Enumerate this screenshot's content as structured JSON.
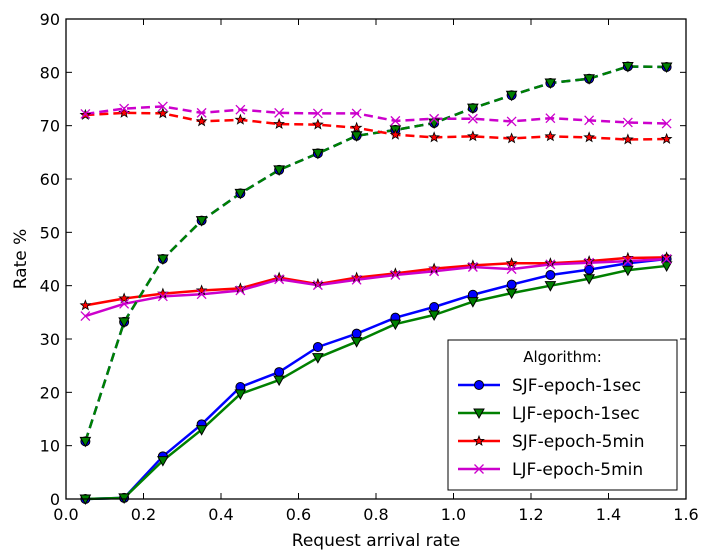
{
  "chart_data": {
    "type": "line",
    "xlabel": "Request arrival rate",
    "ylabel": "Rate %",
    "xlim": [
      0.0,
      1.6
    ],
    "ylim": [
      0,
      90
    ],
    "xticks": [
      "0.0",
      "0.2",
      "0.4",
      "0.6",
      "0.8",
      "1.0",
      "1.2",
      "1.4",
      "1.6"
    ],
    "yticks": [
      "0",
      "10",
      "20",
      "30",
      "40",
      "50",
      "60",
      "70",
      "80",
      "90"
    ],
    "grid": false,
    "legend": {
      "title": "Algorithm:",
      "placement": "lower-right"
    },
    "x": [
      0.05,
      0.15,
      0.25,
      0.35,
      0.45,
      0.55,
      0.65,
      0.75,
      0.85,
      0.95,
      1.05,
      1.15,
      1.25,
      1.35,
      1.45,
      1.55
    ],
    "series": [
      {
        "name": "SJF-epoch-1sec",
        "color": "#0000ff",
        "marker": "circle",
        "line": "solid",
        "in_legend": true,
        "values": [
          0.0,
          0.2,
          8.0,
          14.0,
          21.0,
          23.8,
          28.5,
          31.0,
          34.0,
          36.0,
          38.3,
          40.2,
          42.0,
          43.0,
          44.2,
          45.0
        ]
      },
      {
        "name": "LJF-epoch-1sec",
        "color": "#008000",
        "marker": "triangle-down",
        "line": "solid",
        "in_legend": true,
        "values": [
          0.0,
          0.2,
          7.2,
          13.0,
          19.7,
          22.3,
          26.5,
          29.5,
          32.8,
          34.5,
          37.0,
          38.6,
          40.0,
          41.3,
          42.9,
          43.7
        ]
      },
      {
        "name": "SJF-epoch-5min",
        "color": "#ff0000",
        "marker": "star",
        "line": "solid",
        "in_legend": true,
        "values": [
          36.3,
          37.6,
          38.5,
          39.1,
          39.5,
          41.5,
          40.3,
          41.5,
          42.3,
          43.2,
          43.8,
          44.2,
          44.2,
          44.6,
          45.2,
          45.3
        ]
      },
      {
        "name": "LJF-epoch-5min",
        "color": "#cc00cc",
        "marker": "x",
        "line": "solid",
        "in_legend": true,
        "values": [
          34.3,
          36.6,
          38.0,
          38.4,
          39.1,
          41.2,
          40.1,
          41.1,
          42.0,
          42.7,
          43.5,
          43.1,
          44.0,
          44.3,
          44.6,
          45.0
        ]
      },
      {
        "color": "#0000ff",
        "marker": "circle",
        "line": "dashed",
        "in_legend": false,
        "values": [
          10.8,
          33.2,
          45.0,
          52.2,
          57.3,
          61.7,
          64.8,
          68.1,
          69.2,
          70.5,
          73.3,
          75.7,
          78.0,
          78.8,
          81.1,
          81.0
        ]
      },
      {
        "color": "#008000",
        "marker": "triangle-down",
        "line": "dashed",
        "in_legend": false,
        "values": [
          10.8,
          33.2,
          45.0,
          52.2,
          57.3,
          61.7,
          64.8,
          68.1,
          69.2,
          70.5,
          73.3,
          75.7,
          78.0,
          78.8,
          81.1,
          81.0
        ]
      },
      {
        "color": "#ff0000",
        "marker": "star",
        "line": "dashed",
        "in_legend": false,
        "values": [
          72.0,
          72.4,
          72.3,
          70.8,
          71.1,
          70.3,
          70.2,
          69.6,
          68.3,
          67.8,
          68.0,
          67.6,
          68.0,
          67.8,
          67.4,
          67.5
        ]
      },
      {
        "color": "#cc00cc",
        "marker": "x",
        "line": "dashed",
        "in_legend": false,
        "values": [
          72.2,
          73.2,
          73.6,
          72.4,
          73.0,
          72.4,
          72.3,
          72.3,
          70.9,
          71.3,
          71.3,
          70.8,
          71.4,
          71.0,
          70.6,
          70.4
        ]
      }
    ]
  }
}
